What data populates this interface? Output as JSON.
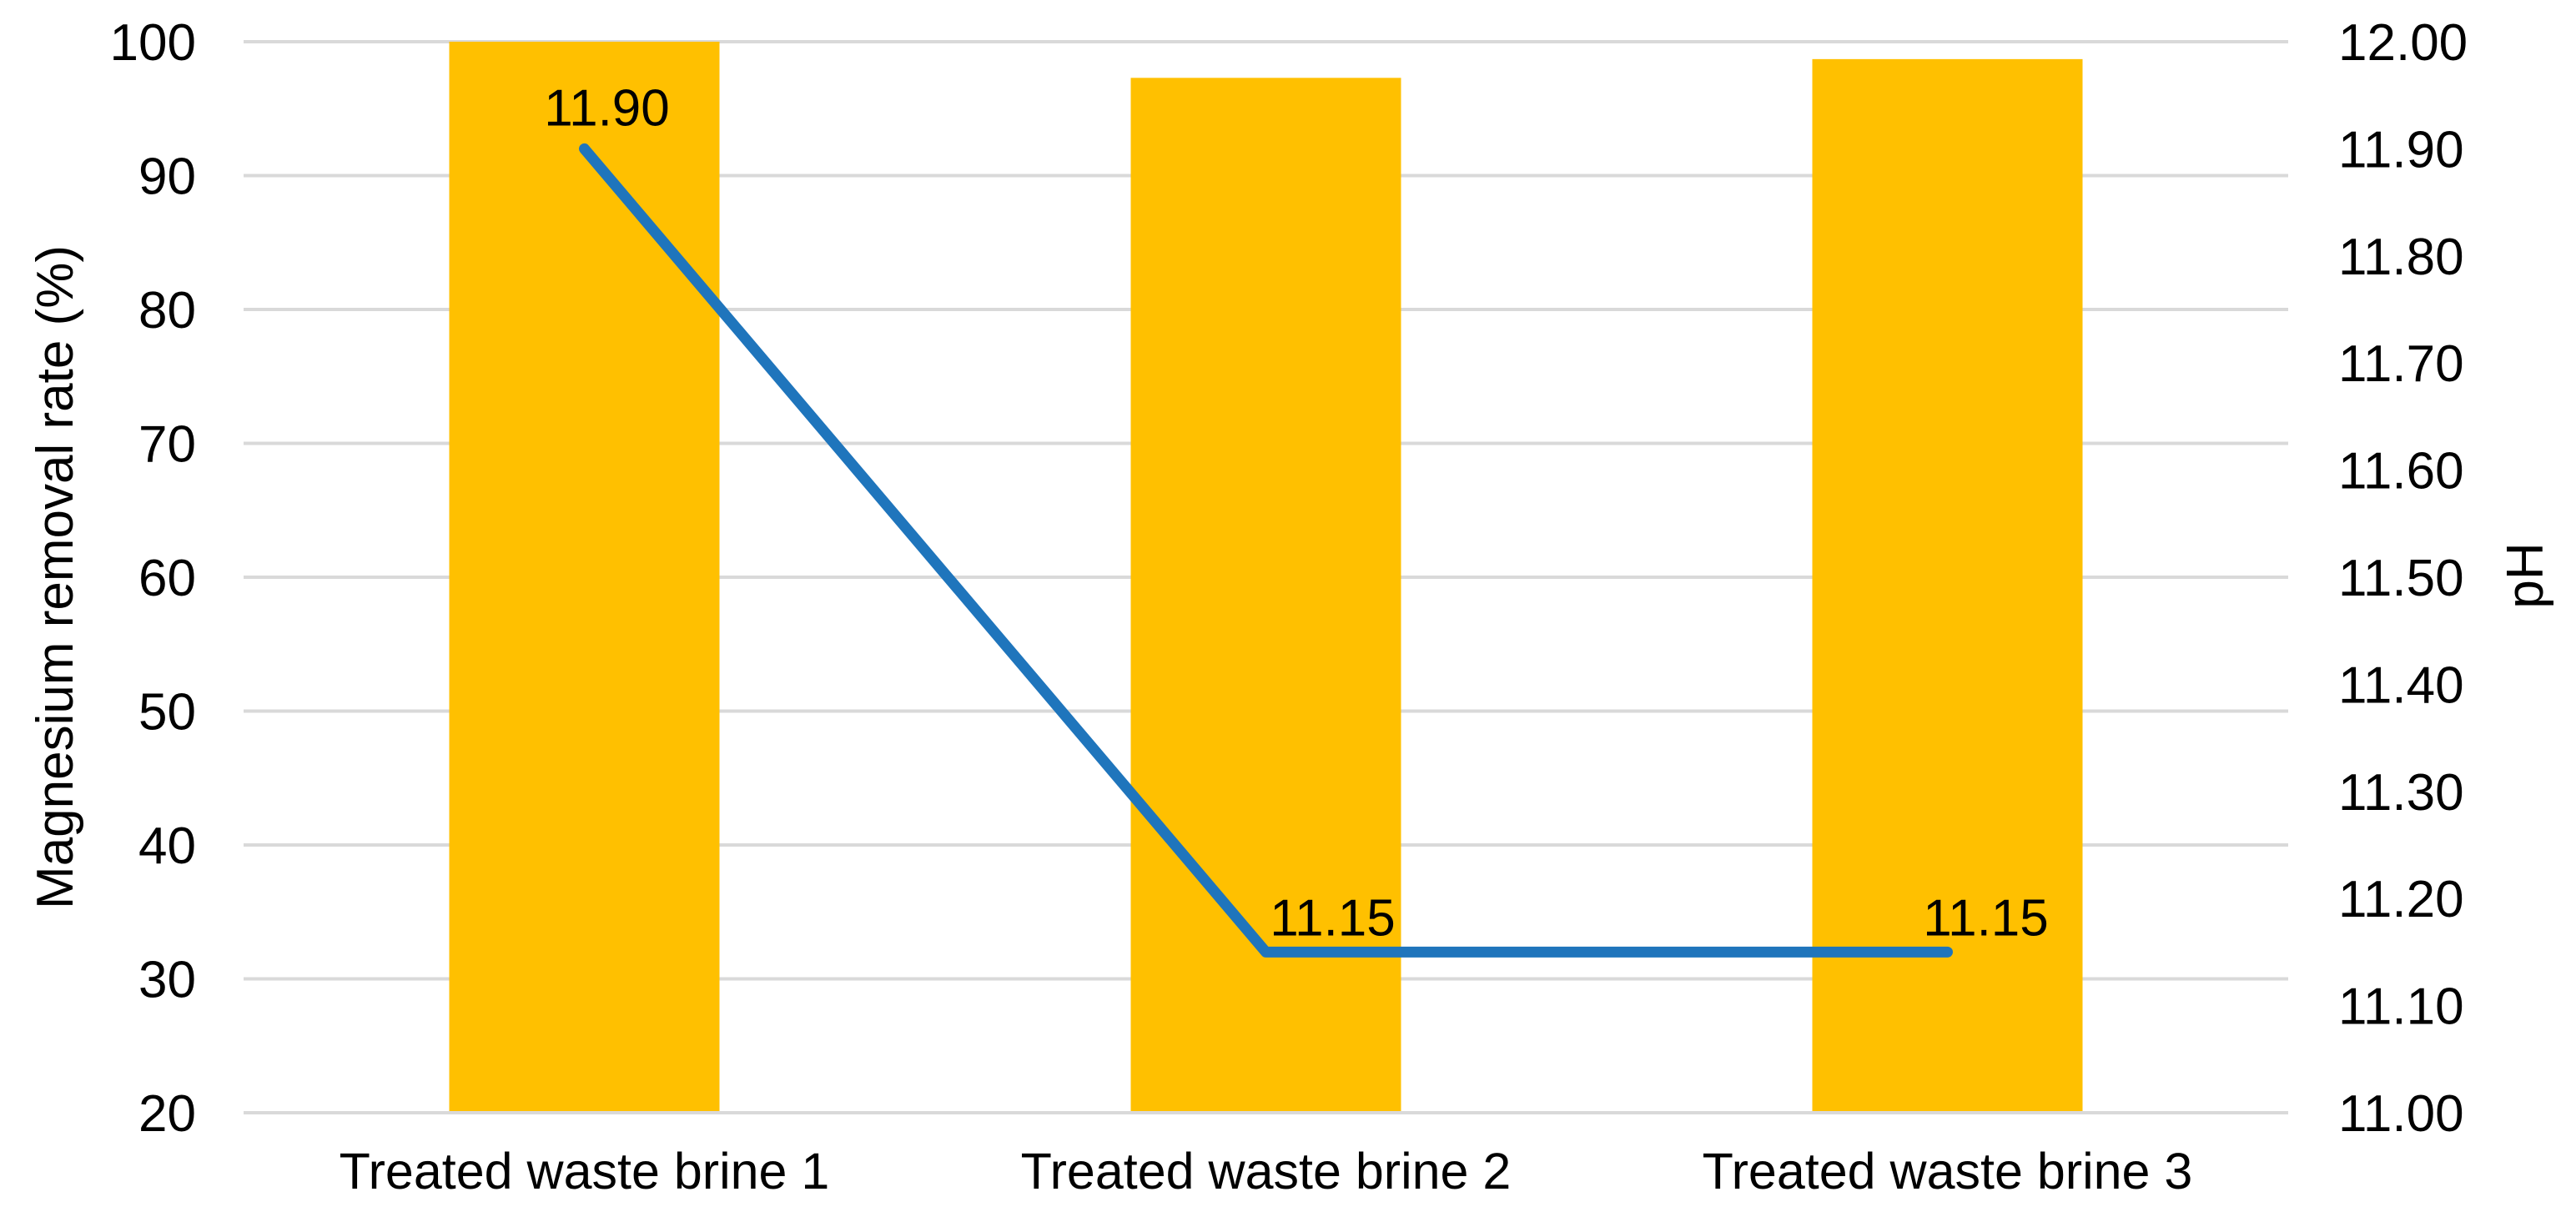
{
  "chart_data": {
    "type": "combo",
    "categories": [
      "Treated waste brine 1",
      "Treated waste brine 2",
      "Treated waste brine 3"
    ],
    "series": [
      {
        "name": "Magnesium removal rate",
        "type": "bar",
        "axis": "left",
        "color": "#FFC000",
        "values": [
          100,
          97.3,
          98.7
        ]
      },
      {
        "name": "pH",
        "type": "line",
        "axis": "right",
        "color": "#1F75BC",
        "values": [
          11.9,
          11.15,
          11.15
        ],
        "data_labels": [
          "11.90",
          "11.15",
          "11.15"
        ]
      }
    ],
    "left_axis": {
      "title": "Magnesium removal rate (%)",
      "min": 20,
      "max": 100,
      "step": 10,
      "tick_labels": [
        "20",
        "30",
        "40",
        "50",
        "60",
        "70",
        "80",
        "90",
        "100"
      ]
    },
    "right_axis": {
      "title": "pH",
      "min": 11.0,
      "max": 12.0,
      "step": 0.1,
      "tick_labels": [
        "11.00",
        "11.10",
        "11.20",
        "11.30",
        "11.40",
        "11.50",
        "11.60",
        "11.70",
        "11.80",
        "11.90",
        "12.00"
      ]
    },
    "gridlines": {
      "show": true,
      "color": "#D9D9D9"
    },
    "background": "#FFFFFF",
    "text_color": "#000000",
    "legend": "none"
  }
}
